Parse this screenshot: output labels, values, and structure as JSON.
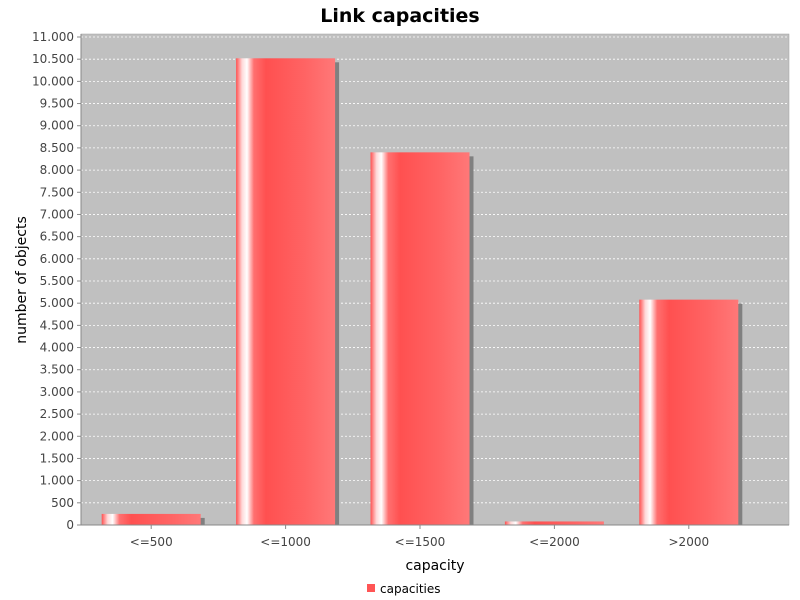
{
  "chart_data": {
    "type": "bar",
    "title": "Link capacities",
    "xlabel": "capacity",
    "ylabel": "number of objects",
    "categories": [
      "<=500",
      "<=1000",
      "<=1500",
      "<=2000",
      ">2000"
    ],
    "series": [
      {
        "name": "capacities",
        "values": [
          250,
          10520,
          8400,
          80,
          5080
        ]
      }
    ],
    "ylim": [
      0,
      11000
    ],
    "yticks": [
      0,
      500,
      1000,
      1500,
      2000,
      2500,
      3000,
      3500,
      4000,
      4500,
      5000,
      5500,
      6000,
      6500,
      7000,
      7500,
      8000,
      8500,
      9000,
      9500,
      10000,
      10500,
      11000
    ],
    "ytick_labels": [
      "0",
      "500",
      "1.000",
      "1.500",
      "2.000",
      "2.500",
      "3.000",
      "3.500",
      "4.000",
      "4.500",
      "5.000",
      "5.500",
      "6.000",
      "6.500",
      "7.000",
      "7.500",
      "8.000",
      "8.500",
      "9.000",
      "9.500",
      "10.000",
      "10.500",
      "11.000"
    ],
    "grid": true,
    "legend_position": "bottom",
    "colors": {
      "plot_background": "#c0c0c0",
      "bar": "#ff5555",
      "bar_highlight": "#ffffff",
      "bar_shadow": "#808080",
      "gridline": "#ffffff"
    }
  }
}
